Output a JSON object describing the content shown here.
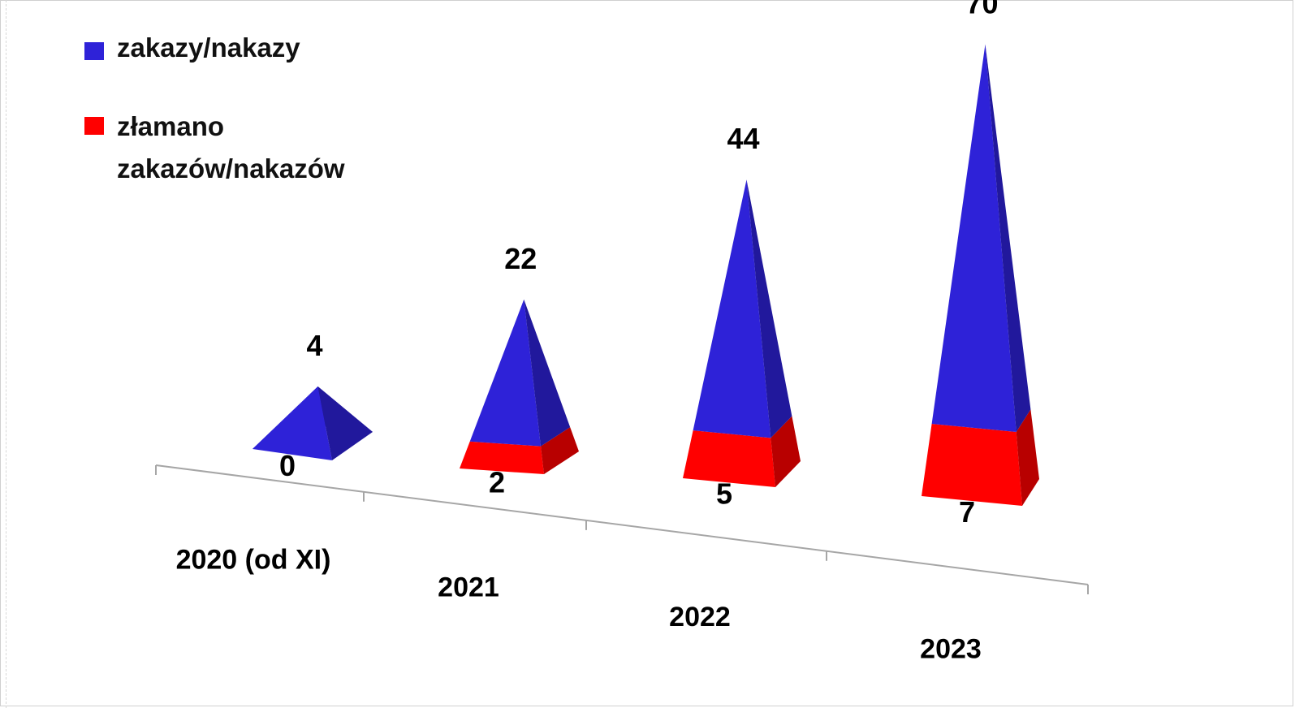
{
  "chart_data": {
    "type": "bar",
    "style": "3d-pyramid",
    "categories": [
      "2020 (od XI)",
      "2021",
      "2022",
      "2023"
    ],
    "series": [
      {
        "name": "zakazy/nakazy",
        "values": [
          4,
          22,
          44,
          70
        ],
        "color": "#2e22d8"
      },
      {
        "name": "złamano zakazów/nakazów",
        "values": [
          0,
          2,
          5,
          7
        ],
        "color": "#ff0000"
      }
    ],
    "title": "",
    "xlabel": "",
    "ylabel": "",
    "ylim": [
      0,
      70
    ],
    "grid": false,
    "legend": "top-left"
  }
}
